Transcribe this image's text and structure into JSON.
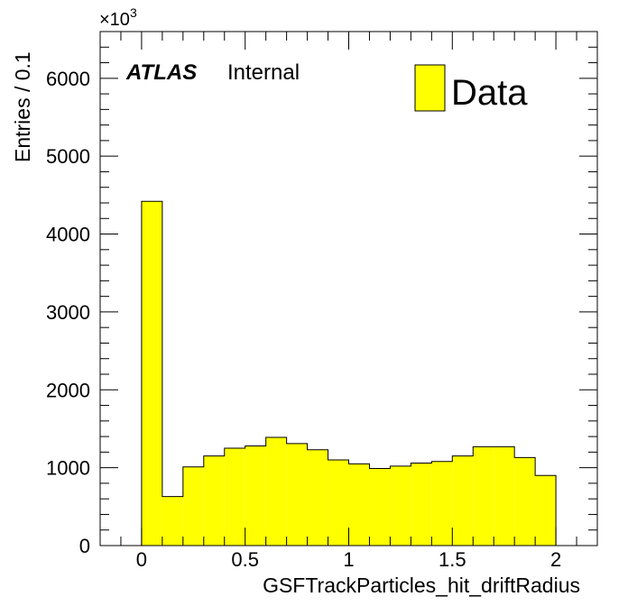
{
  "chart_data": {
    "type": "bar",
    "histogram": true,
    "xlabel": "GSFTrackParticles_hit_driftRadius",
    "ylabel": "Entries / 0.1",
    "y_multiplier_label": "×10",
    "y_multiplier_exp": "3",
    "xlim": [
      -0.2,
      2.2
    ],
    "ylim": [
      0,
      6600
    ],
    "x_ticks": [
      0,
      0.5,
      1,
      1.5,
      2
    ],
    "x_tick_labels": [
      "0",
      "0.5",
      "1",
      "1.5",
      "2"
    ],
    "y_ticks": [
      0,
      1000,
      2000,
      3000,
      4000,
      5000,
      6000
    ],
    "y_tick_labels": [
      "0",
      "1000",
      "2000",
      "3000",
      "4000",
      "5000",
      "6000"
    ],
    "bin_edges": [
      0,
      0.1,
      0.2,
      0.3,
      0.4,
      0.5,
      0.6,
      0.7,
      0.8,
      0.9,
      1.0,
      1.1,
      1.2,
      1.3,
      1.4,
      1.5,
      1.6,
      1.7,
      1.8,
      1.9,
      2.0
    ],
    "values": [
      4420,
      630,
      1010,
      1150,
      1250,
      1280,
      1390,
      1310,
      1230,
      1100,
      1050,
      990,
      1020,
      1060,
      1080,
      1150,
      1270,
      1270,
      1130,
      900
    ],
    "series": [
      {
        "name": "Data",
        "color": "#ffff00"
      }
    ],
    "legend_position": "top-right",
    "grid": false
  },
  "labels": {
    "atlas": "ATLAS",
    "internal": "Internal",
    "legend": "Data"
  },
  "colors": {
    "fill": "#ffff00",
    "line": "#000000"
  }
}
